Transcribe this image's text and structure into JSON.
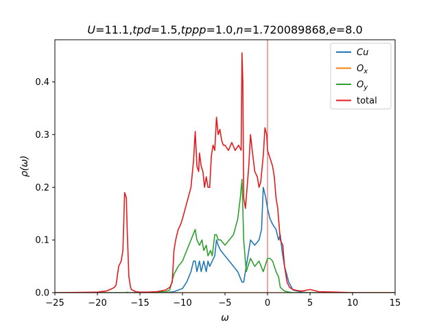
{
  "chart_data": {
    "type": "line",
    "title_segments": [
      {
        "t": "U",
        "i": true
      },
      {
        "t": "=11.1,",
        "i": false
      },
      {
        "t": "tpd",
        "i": true
      },
      {
        "t": "=1.5,",
        "i": false
      },
      {
        "t": "tppp",
        "i": true
      },
      {
        "t": "=1.0,",
        "i": false
      },
      {
        "t": "n",
        "i": true
      },
      {
        "t": "=1.720089868,",
        "i": false
      },
      {
        "t": "e",
        "i": true
      },
      {
        "t": "=8.0",
        "i": false
      }
    ],
    "xlabel": "ω",
    "ylabel": "ρ(ω)",
    "xlim": [
      -25,
      15
    ],
    "ylim": [
      0,
      0.48
    ],
    "xticks": [
      -25,
      -20,
      -15,
      -10,
      -5,
      0,
      5,
      10,
      15
    ],
    "xtick_labels": [
      "−25",
      "−20",
      "−15",
      "−10",
      "−5",
      "0",
      "5",
      "10",
      "15"
    ],
    "yticks": [
      0.0,
      0.1,
      0.2,
      0.3,
      0.4
    ],
    "ytick_labels": [
      "0.0",
      "0.1",
      "0.2",
      "0.3",
      "0.4"
    ],
    "vline_x": 0,
    "vline_color": "#e31a1c",
    "grid": false,
    "legend_position": "top-right",
    "series": [
      {
        "name": "Cu",
        "label_base": "Cu",
        "label_sub": "",
        "italic": true,
        "color": "#1f77b4",
        "x": [
          -25,
          -12,
          -11,
          -10.5,
          -10,
          -9.5,
          -9,
          -8.7,
          -8.5,
          -8.3,
          -8,
          -7.8,
          -7.5,
          -7.2,
          -7,
          -6.8,
          -6.5,
          -6.2,
          -6,
          -5.8,
          -5.5,
          -5,
          -4.5,
          -4,
          -3.5,
          -3,
          -2.8,
          -2.5,
          -2,
          -1.5,
          -1,
          -0.7,
          -0.5,
          -0.2,
          0,
          0.3,
          0.6,
          1,
          1.3,
          1.5,
          1.7,
          2,
          2.5,
          3,
          4,
          5,
          15
        ],
        "y": [
          0,
          0,
          0.002,
          0.005,
          0.008,
          0.02,
          0.04,
          0.06,
          0.06,
          0.04,
          0.06,
          0.04,
          0.06,
          0.04,
          0.06,
          0.05,
          0.06,
          0.07,
          0.1,
          0.09,
          0.08,
          0.07,
          0.06,
          0.05,
          0.04,
          0.02,
          0.02,
          0.05,
          0.1,
          0.09,
          0.1,
          0.12,
          0.2,
          0.18,
          0.16,
          0.14,
          0.13,
          0.12,
          0.1,
          0.11,
          0.08,
          0.05,
          0.02,
          0.005,
          0.001,
          0,
          0
        ]
      },
      {
        "name": "Ox",
        "label_base": "O",
        "label_sub": "x",
        "italic": true,
        "color": "#ff7f0e",
        "x": [
          -25,
          15
        ],
        "y": [
          0,
          0
        ]
      },
      {
        "name": "Oy",
        "label_base": "O",
        "label_sub": "y",
        "italic": true,
        "color": "#2ca02c",
        "x": [
          -25,
          -17,
          -16.7,
          -16.5,
          -16.3,
          -16,
          -12,
          -11.5,
          -11,
          -10.5,
          -10,
          -9.5,
          -9,
          -8.5,
          -8.3,
          -8,
          -7.7,
          -7.5,
          -7.2,
          -7,
          -6.7,
          -6.5,
          -6.2,
          -6,
          -5.8,
          -5.5,
          -5,
          -4.5,
          -4,
          -3.5,
          -3.2,
          -3,
          -2.8,
          -2.5,
          -2,
          -1.5,
          -1,
          -0.5,
          0,
          0.3,
          0.6,
          1,
          1.3,
          1.5,
          2,
          2.5,
          3,
          4,
          15
        ],
        "y": [
          0,
          0,
          0,
          0.001,
          0,
          0,
          0.002,
          0.005,
          0.035,
          0.05,
          0.06,
          0.08,
          0.1,
          0.12,
          0.1,
          0.09,
          0.1,
          0.08,
          0.09,
          0.07,
          0.08,
          0.07,
          0.11,
          0.11,
          0.1,
          0.1,
          0.09,
          0.1,
          0.11,
          0.14,
          0.18,
          0.215,
          0.1,
          0.04,
          0.065,
          0.05,
          0.06,
          0.04,
          0.065,
          0.065,
          0.06,
          0.04,
          0.03,
          0.01,
          0.003,
          0.001,
          0,
          0,
          0
        ]
      },
      {
        "name": "total",
        "label_base": "total",
        "label_sub": "",
        "italic": false,
        "color": "#e31a1c",
        "x": [
          -25,
          -20,
          -19,
          -18.5,
          -18,
          -17.8,
          -17.5,
          -17.2,
          -17,
          -16.8,
          -16.6,
          -16.5,
          -16.3,
          -16.1,
          -16,
          -15.5,
          -15,
          -14,
          -13,
          -12,
          -11.5,
          -11.2,
          -11,
          -10.8,
          -10.5,
          -10.2,
          -10,
          -9.5,
          -9,
          -8.7,
          -8.5,
          -8.3,
          -8.1,
          -8,
          -7.8,
          -7.6,
          -7.4,
          -7.2,
          -7,
          -6.8,
          -6.6,
          -6.4,
          -6.2,
          -6,
          -5.8,
          -5.6,
          -5.4,
          -5.2,
          -5,
          -4.6,
          -4.2,
          -3.8,
          -3.4,
          -3.1,
          -3,
          -2.9,
          -2.8,
          -2.6,
          -2.2,
          -2,
          -1.8,
          -1.5,
          -1.2,
          -1,
          -0.8,
          -0.5,
          -0.3,
          -0.1,
          0,
          0.2,
          0.4,
          0.6,
          0.8,
          1,
          1.2,
          1.5,
          1.8,
          2,
          2.3,
          2.6,
          3,
          3.5,
          4,
          5,
          5.5,
          6,
          8,
          10,
          15
        ],
        "y": [
          0,
          0.001,
          0.003,
          0.006,
          0.01,
          0.015,
          0.05,
          0.06,
          0.08,
          0.19,
          0.18,
          0.12,
          0.03,
          0.01,
          0.006,
          0.002,
          0.001,
          0.001,
          0.002,
          0.005,
          0.01,
          0.02,
          0.08,
          0.1,
          0.12,
          0.13,
          0.14,
          0.17,
          0.2,
          0.25,
          0.306,
          0.24,
          0.23,
          0.265,
          0.24,
          0.23,
          0.2,
          0.22,
          0.2,
          0.2,
          0.26,
          0.28,
          0.27,
          0.333,
          0.3,
          0.31,
          0.29,
          0.28,
          0.28,
          0.27,
          0.285,
          0.27,
          0.28,
          0.27,
          0.455,
          0.4,
          0.18,
          0.16,
          0.24,
          0.3,
          0.27,
          0.23,
          0.22,
          0.2,
          0.21,
          0.26,
          0.313,
          0.3,
          0.27,
          0.26,
          0.25,
          0.24,
          0.22,
          0.18,
          0.16,
          0.1,
          0.09,
          0.05,
          0.02,
          0.01,
          0.006,
          0.004,
          0.003,
          0.006,
          0.004,
          0.002,
          0.001,
          0,
          0
        ]
      }
    ]
  }
}
